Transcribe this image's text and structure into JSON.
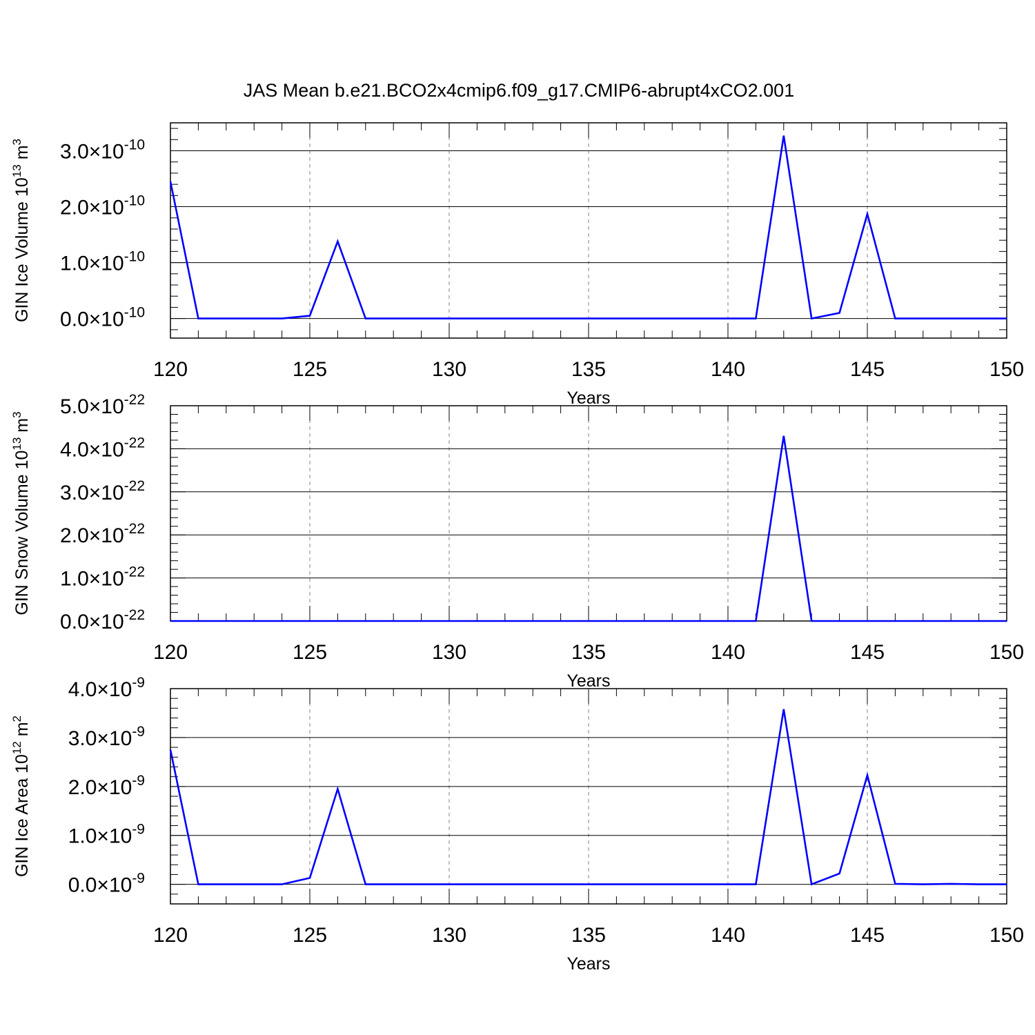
{
  "title": "JAS Mean b.e21.BCO2x4cmip6.f09_g17.CMIP6-abrupt4xCO2.001",
  "colors": {
    "line": "#0000ff",
    "axis": "#000000",
    "grid": "#808080"
  },
  "chart_data": [
    {
      "type": "line",
      "xlabel": "Years",
      "ylabel_main": "GIN Ice Volume 10",
      "ylabel_exp": "13",
      "ylabel_unit": " m",
      "ylabel_unit_exp": "3",
      "y_exponent": "-10",
      "xlim": [
        120,
        150
      ],
      "ylim": [
        -0.35,
        3.5
      ],
      "x_ticks": [
        120,
        125,
        130,
        135,
        140,
        145,
        150
      ],
      "y_ticks": [
        0.0,
        1.0,
        2.0,
        3.0
      ],
      "y_tick_labels": [
        "0.0",
        "1.0",
        "2.0",
        "3.0"
      ],
      "grid_x": true,
      "series": [
        {
          "x": [
            120,
            121,
            122,
            123,
            124,
            125,
            126,
            127,
            128,
            129,
            130,
            131,
            132,
            133,
            134,
            135,
            136,
            137,
            138,
            139,
            140,
            141,
            142,
            143,
            144,
            145,
            146,
            147,
            148,
            149,
            150
          ],
          "values": [
            2.45,
            0.0,
            0.0,
            0.0,
            0.0,
            0.05,
            1.38,
            0.0,
            0.0,
            0.0,
            0.0,
            0.0,
            0.0,
            0.0,
            0.0,
            0.0,
            0.0,
            0.0,
            0.0,
            0.0,
            0.0,
            0.0,
            3.27,
            0.0,
            0.1,
            1.87,
            0.0,
            0.0,
            0.0,
            0.0,
            0.0
          ]
        }
      ]
    },
    {
      "type": "line",
      "xlabel": "Years",
      "ylabel_main": "GIN Snow Volume 10",
      "ylabel_exp": "13",
      "ylabel_unit": " m",
      "ylabel_unit_exp": "3",
      "y_exponent": "-22",
      "xlim": [
        120,
        150
      ],
      "ylim": [
        0,
        5.0
      ],
      "x_ticks": [
        120,
        125,
        130,
        135,
        140,
        145,
        150
      ],
      "y_ticks": [
        0.0,
        1.0,
        2.0,
        3.0,
        4.0,
        5.0
      ],
      "y_tick_labels": [
        "0.0",
        "1.0",
        "2.0",
        "3.0",
        "4.0",
        "5.0"
      ],
      "grid_x": true,
      "series": [
        {
          "x": [
            120,
            121,
            122,
            123,
            124,
            125,
            126,
            127,
            128,
            129,
            130,
            131,
            132,
            133,
            134,
            135,
            136,
            137,
            138,
            139,
            140,
            141,
            142,
            143,
            144,
            145,
            146,
            147,
            148,
            149,
            150
          ],
          "values": [
            0,
            0,
            0,
            0,
            0,
            0,
            0,
            0,
            0,
            0,
            0,
            0,
            0,
            0,
            0,
            0,
            0,
            0,
            0,
            0,
            0,
            0,
            4.3,
            0,
            0,
            0,
            0,
            0,
            0,
            0,
            0
          ]
        }
      ]
    },
    {
      "type": "line",
      "xlabel": "Years",
      "ylabel_main": "GIN Ice Area 10",
      "ylabel_exp": "12",
      "ylabel_unit": " m",
      "ylabel_unit_exp": "2",
      "y_exponent": "-9",
      "xlim": [
        120,
        150
      ],
      "ylim": [
        -0.4,
        4.0
      ],
      "x_ticks": [
        120,
        125,
        130,
        135,
        140,
        145,
        150
      ],
      "y_ticks": [
        0.0,
        1.0,
        2.0,
        3.0,
        4.0
      ],
      "y_tick_labels": [
        "0.0",
        "1.0",
        "2.0",
        "3.0",
        "4.0"
      ],
      "grid_x": true,
      "series": [
        {
          "x": [
            120,
            121,
            122,
            123,
            124,
            125,
            126,
            127,
            128,
            129,
            130,
            131,
            132,
            133,
            134,
            135,
            136,
            137,
            138,
            139,
            140,
            141,
            142,
            143,
            144,
            145,
            146,
            147,
            148,
            149,
            150
          ],
          "values": [
            2.75,
            0.0,
            0.0,
            0.0,
            0.0,
            0.13,
            1.95,
            0.0,
            0.0,
            0.0,
            0.0,
            0.0,
            0.0,
            0.0,
            0.0,
            0.0,
            0.0,
            0.0,
            0.0,
            0.0,
            0.0,
            0.0,
            3.58,
            0.0,
            0.22,
            2.23,
            0.01,
            0.0,
            0.01,
            0.0,
            0.0
          ]
        }
      ]
    }
  ]
}
